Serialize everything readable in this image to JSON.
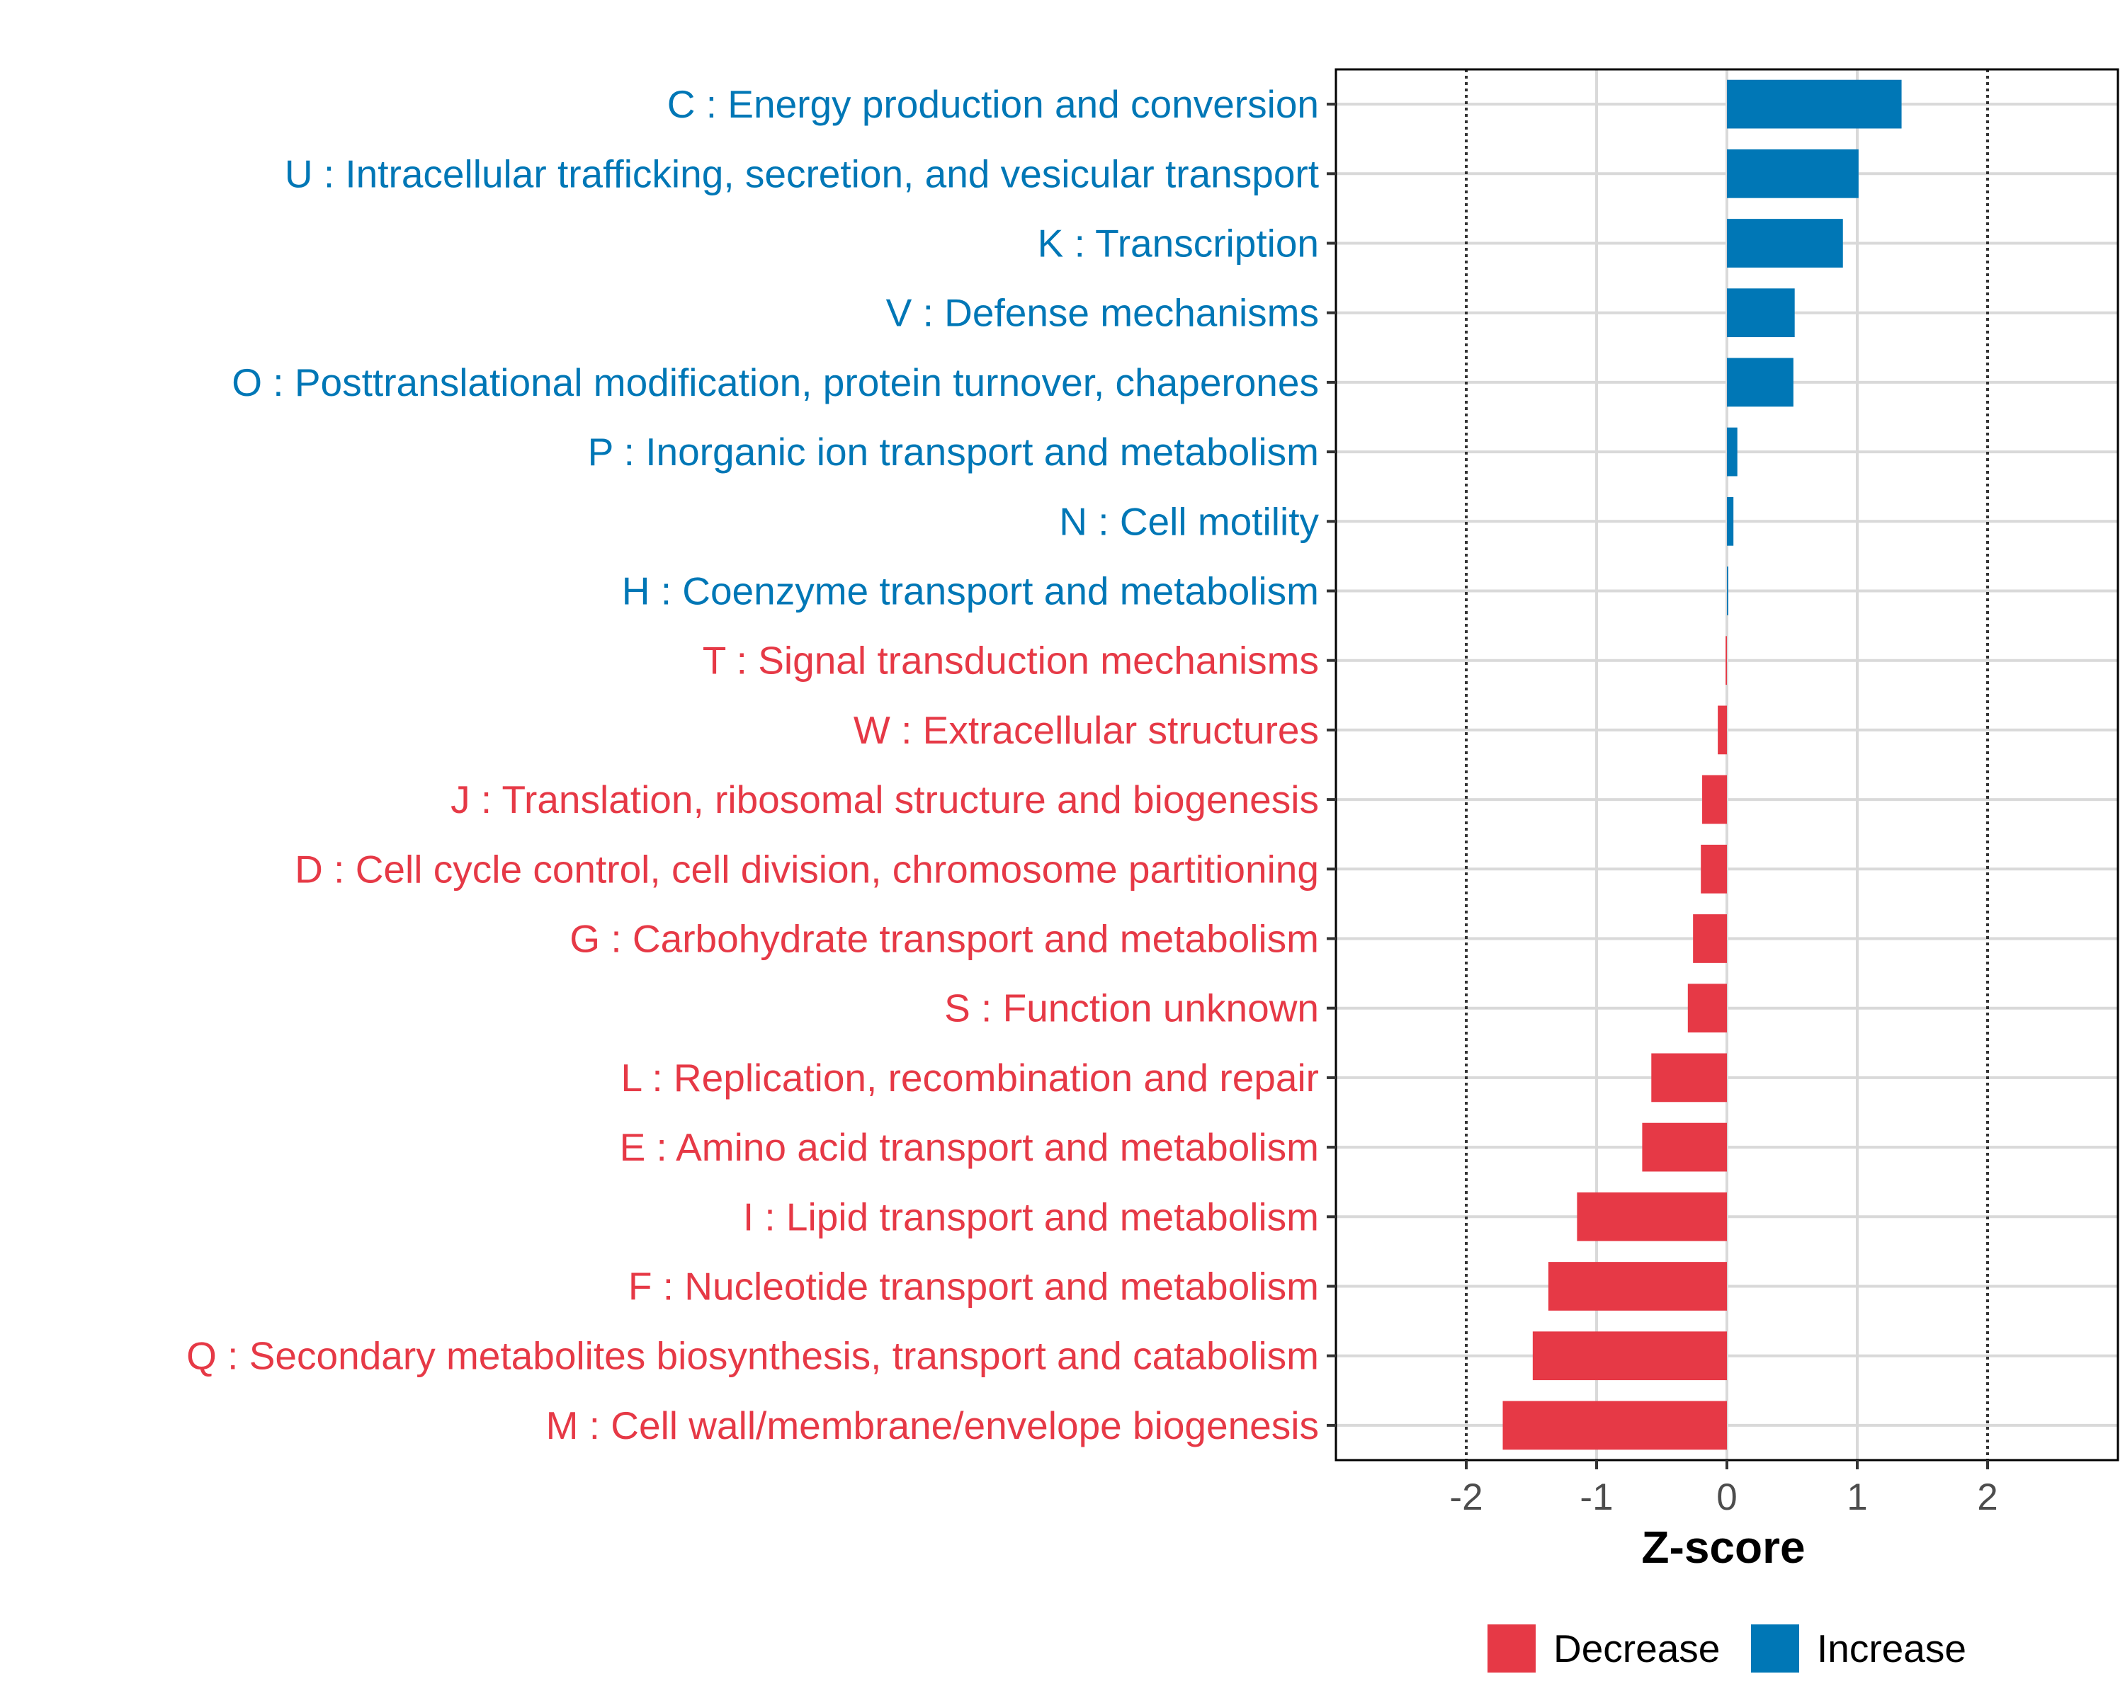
{
  "chart_data": {
    "type": "bar",
    "orientation": "horizontal",
    "xlabel": "Z-score",
    "xlim": [
      -3.0,
      3.0
    ],
    "xticks": [
      -2,
      -1,
      0,
      1,
      2
    ],
    "xtick_labels": [
      "-2",
      "-1",
      "0",
      "1",
      "2"
    ],
    "reference_lines": [
      -2,
      2
    ],
    "grid": true,
    "colors": {
      "Decrease": "#E63946",
      "Increase": "#0077B6"
    },
    "legend": {
      "placement": "bottom",
      "entries": [
        {
          "label": "Decrease",
          "color": "#E63946"
        },
        {
          "label": "Increase",
          "color": "#0077B6"
        }
      ]
    },
    "categories": [
      {
        "label": "C : Energy production and conversion",
        "value": 1.34,
        "group": "Increase"
      },
      {
        "label": "U : Intracellular trafficking, secretion, and vesicular transport",
        "value": 1.01,
        "group": "Increase"
      },
      {
        "label": "K : Transcription",
        "value": 0.89,
        "group": "Increase"
      },
      {
        "label": "V : Defense mechanisms",
        "value": 0.52,
        "group": "Increase"
      },
      {
        "label": "O : Posttranslational modification, protein turnover, chaperones",
        "value": 0.51,
        "group": "Increase"
      },
      {
        "label": "P : Inorganic ion transport and metabolism",
        "value": 0.08,
        "group": "Increase"
      },
      {
        "label": "N : Cell motility",
        "value": 0.05,
        "group": "Increase"
      },
      {
        "label": "H : Coenzyme transport and metabolism",
        "value": 0.01,
        "group": "Increase"
      },
      {
        "label": "T : Signal transduction mechanisms",
        "value": -0.01,
        "group": "Decrease"
      },
      {
        "label": "W : Extracellular structures",
        "value": -0.07,
        "group": "Decrease"
      },
      {
        "label": "J : Translation, ribosomal structure and biogenesis",
        "value": -0.19,
        "group": "Decrease"
      },
      {
        "label": "D : Cell cycle control, cell division, chromosome partitioning",
        "value": -0.2,
        "group": "Decrease"
      },
      {
        "label": "G : Carbohydrate transport and metabolism",
        "value": -0.26,
        "group": "Decrease"
      },
      {
        "label": "S : Function unknown",
        "value": -0.3,
        "group": "Decrease"
      },
      {
        "label": "L : Replication, recombination and repair",
        "value": -0.58,
        "group": "Decrease"
      },
      {
        "label": "E : Amino acid transport and metabolism",
        "value": -0.65,
        "group": "Decrease"
      },
      {
        "label": "I : Lipid transport and metabolism",
        "value": -1.15,
        "group": "Decrease"
      },
      {
        "label": "F : Nucleotide transport and metabolism",
        "value": -1.37,
        "group": "Decrease"
      },
      {
        "label": "Q : Secondary metabolites biosynthesis, transport and catabolism",
        "value": -1.49,
        "group": "Decrease"
      },
      {
        "label": "M : Cell wall/membrane/envelope biogenesis",
        "value": -1.72,
        "group": "Decrease"
      }
    ]
  }
}
